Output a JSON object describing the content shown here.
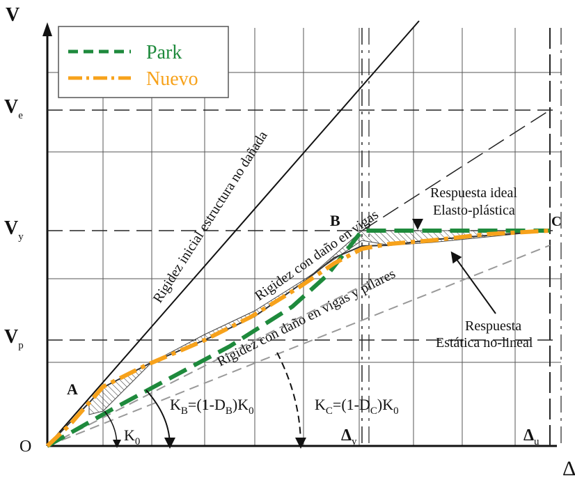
{
  "chart_data": {
    "type": "line",
    "y_axis_label": "V",
    "x_axis_label": "Δ",
    "origin_label": "O",
    "y_ticks": [
      {
        "main": "V",
        "sub": "e"
      },
      {
        "main": "V",
        "sub": "y"
      },
      {
        "main": "V",
        "sub": "p"
      }
    ],
    "x_ticks": [
      {
        "main": "Δ",
        "sub": "y"
      },
      {
        "main": "Δ",
        "sub": "u"
      }
    ],
    "legend": [
      {
        "name": "Park",
        "color": "#1e8a3c",
        "style": "dashed"
      },
      {
        "name": "Nuevo",
        "color": "#f7a21b",
        "style": "dash-dot"
      }
    ],
    "points": {
      "A": "A",
      "B": "B",
      "C": "C"
    },
    "labels": {
      "initial": "Rigidez inicial estructura no dañada",
      "beams": "Rigidez con daño en vigas",
      "beams_columns": "Rigidez con daño en vigas y pilares",
      "ideal_1": "Respuesta ideal",
      "ideal_2": "Elasto-plástica",
      "static_1": "Respuesta",
      "static_2": "Estática no-lineal"
    },
    "stiffness": {
      "k0": {
        "main": "K",
        "sub": "0"
      },
      "kb": {
        "p1": "K",
        "s1": "B",
        "p2": "=(1-D",
        "s2": "B",
        "p3": ")K",
        "s3": "0"
      },
      "kc": {
        "p1": "K",
        "s1": "C",
        "p2": "=(1-D",
        "s2": "C",
        "p3": ")K",
        "s3": "0"
      }
    },
    "colors": {
      "park": "#1e8a3c",
      "nuevo": "#f7a21b",
      "grid": "#555555"
    }
  }
}
